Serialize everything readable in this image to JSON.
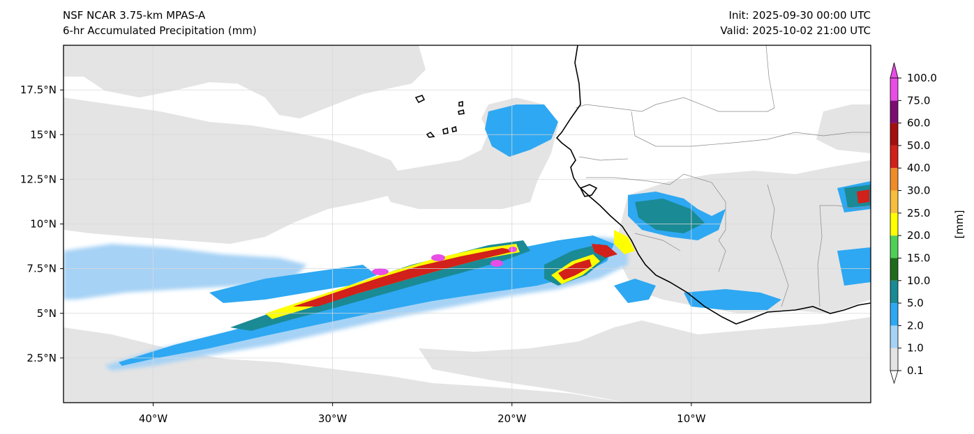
{
  "header": {
    "model": "NSF NCAR 3.75-km MPAS-A",
    "field": "6-hr Accumulated Precipitation (mm)",
    "init": "Init: 2025-09-30 00:00 UTC",
    "valid": "Valid: 2025-10-02 21:00 UTC"
  },
  "map": {
    "lon_range": [
      -45,
      0
    ],
    "lat_range": [
      0,
      20
    ],
    "lon_ticks": [
      {
        "value": -40,
        "label": "40°W"
      },
      {
        "value": -30,
        "label": "30°W"
      },
      {
        "value": -20,
        "label": "20°W"
      },
      {
        "value": -10,
        "label": "10°W"
      }
    ],
    "lat_ticks": [
      {
        "value": 17.5,
        "label": "17.5°N"
      },
      {
        "value": 15,
        "label": "15°N"
      },
      {
        "value": 12.5,
        "label": "12.5°N"
      },
      {
        "value": 10,
        "label": "10°N"
      },
      {
        "value": 7.5,
        "label": "7.5°N"
      },
      {
        "value": 5,
        "label": "5°N"
      },
      {
        "value": 2.5,
        "label": "2.5°N"
      }
    ],
    "gridlines": true
  },
  "colorbar": {
    "units": "[mm]",
    "levels": [
      "0.1",
      "1.0",
      "2.0",
      "5.0",
      "10.0",
      "15.0",
      "20.0",
      "25.0",
      "30.0",
      "40.0",
      "50.0",
      "60.0",
      "75.0",
      "100.0"
    ],
    "colors": [
      "#e4e4e4",
      "#a6d2f5",
      "#2ea8f2",
      "#1a8a95",
      "#1e6b1c",
      "#4fd056",
      "#ffff00",
      "#f7bd3c",
      "#f08c28",
      "#d2201a",
      "#a50e0e",
      "#7b0d72",
      "#e84de6"
    ],
    "extend": "both"
  },
  "chart_data": {
    "type": "heatmap",
    "title": "6-hr Accumulated Precipitation (mm)",
    "subtitle": "NSF NCAR 3.75-km MPAS-A",
    "xlabel": "",
    "ylabel": "",
    "xlim": [
      -45,
      0
    ],
    "ylim": [
      0,
      20
    ],
    "colorbar_label": "[mm]",
    "levels": [
      0.1,
      1.0,
      2.0,
      5.0,
      10.0,
      15.0,
      20.0,
      25.0,
      30.0,
      40.0,
      50.0,
      60.0,
      75.0,
      100.0
    ],
    "features": [
      {
        "lon": -27,
        "lat": 7.6
      },
      {
        "lon": -23.5,
        "lat": 7.8
      },
      {
        "lon": -20.8,
        "lat": 8.1
      },
      {
        "lon": -18,
        "lat": 7
      },
      {
        "lon": -15.5,
        "lat": 8.2
      },
      {
        "lon": -21,
        "lat": 15.2
      },
      {
        "lon": -10.5,
        "lat": 10.8
      },
      {
        "lon": -3,
        "lat": 5.8
      },
      {
        "lon": -2,
        "lat": 11.5
      }
    ]
  }
}
